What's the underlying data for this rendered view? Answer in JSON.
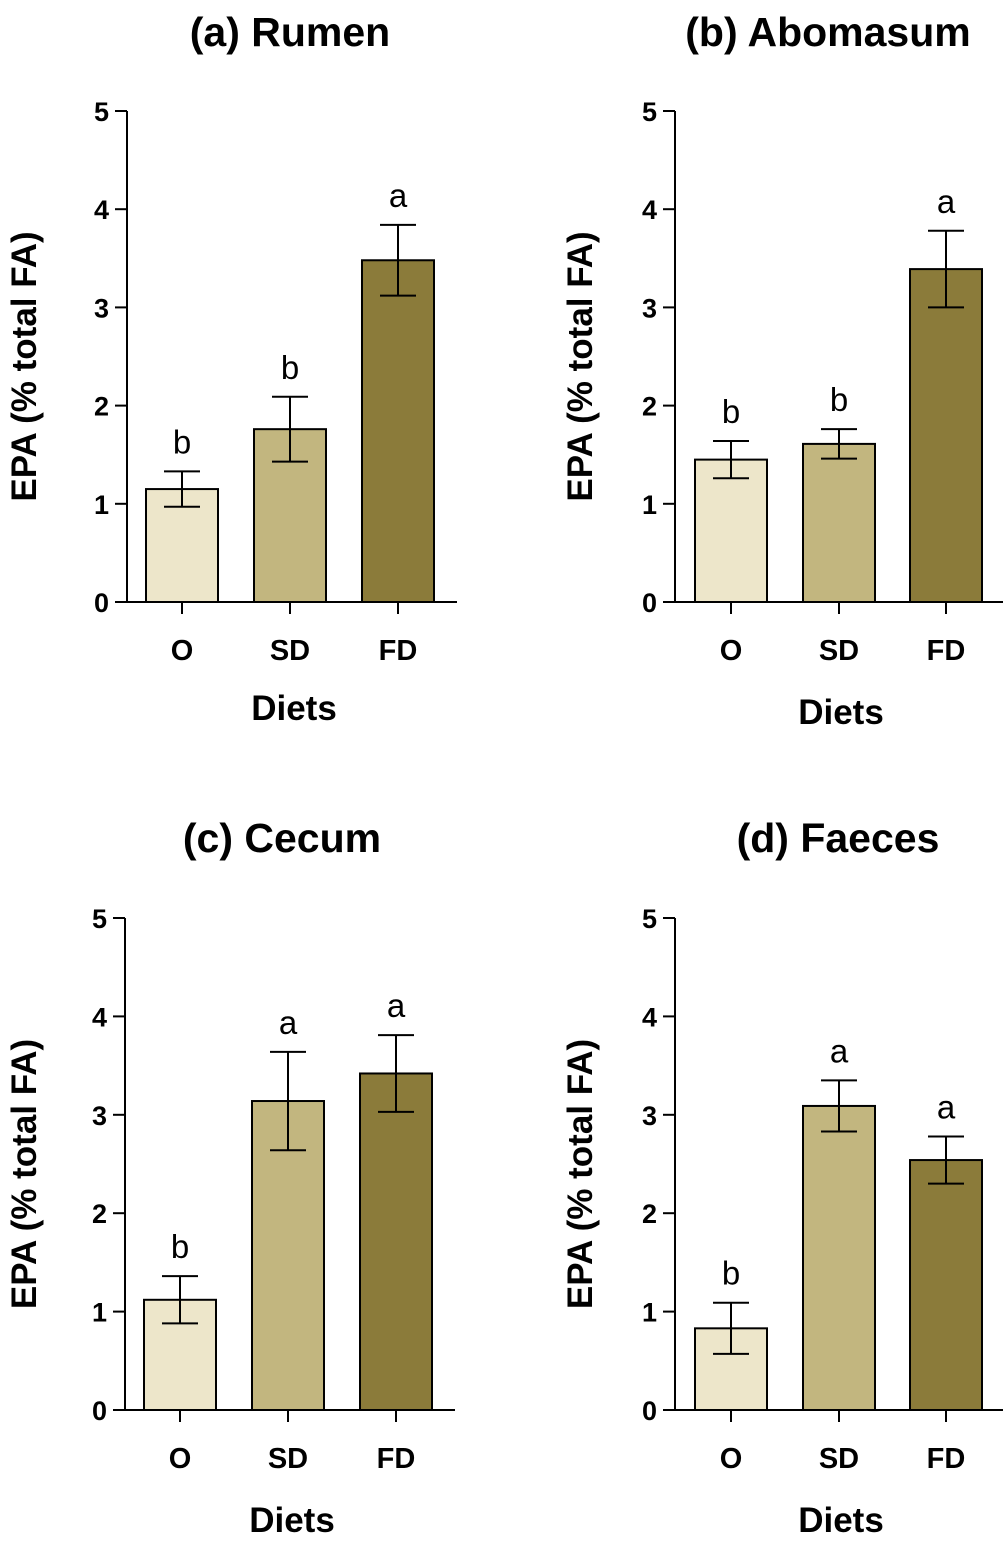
{
  "colors": {
    "O": "#ede6ca",
    "SD": "#c2b67f",
    "FD": "#8b7b3a",
    "stroke": "#000000"
  },
  "chart_data": [
    {
      "type": "bar",
      "title": "(a) Rumen",
      "xlabel": "Diets",
      "ylabel": "EPA (% total FA)",
      "ylim": [
        0,
        5
      ],
      "yticks": [
        "0",
        "1",
        "2",
        "3",
        "4",
        "5"
      ],
      "categories": [
        "O",
        "SD",
        "FD"
      ],
      "values": [
        1.15,
        1.76,
        3.48
      ],
      "errors": [
        0.18,
        0.33,
        0.36
      ],
      "significance": [
        "b",
        "b",
        "a"
      ]
    },
    {
      "type": "bar",
      "title": "(b) Abomasum",
      "xlabel": "Diets",
      "ylabel": "EPA (% total FA)",
      "ylim": [
        0,
        5
      ],
      "yticks": [
        "0",
        "1",
        "2",
        "3",
        "4",
        "5"
      ],
      "categories": [
        "O",
        "SD",
        "FD"
      ],
      "values": [
        1.45,
        1.61,
        3.39
      ],
      "errors": [
        0.19,
        0.15,
        0.39
      ],
      "significance": [
        "b",
        "b",
        "a"
      ]
    },
    {
      "type": "bar",
      "title": "(c) Cecum",
      "xlabel": "Diets",
      "ylabel": "EPA (% total FA)",
      "ylim": [
        0,
        5
      ],
      "yticks": [
        "0",
        "1",
        "2",
        "3",
        "4",
        "5"
      ],
      "categories": [
        "O",
        "SD",
        "FD"
      ],
      "values": [
        1.12,
        3.14,
        3.42
      ],
      "errors": [
        0.24,
        0.5,
        0.39
      ],
      "significance": [
        "b",
        "a",
        "a"
      ]
    },
    {
      "type": "bar",
      "title": "(d) Faeces",
      "xlabel": "Diets",
      "ylabel": "EPA (% total FA)",
      "ylim": [
        0,
        5
      ],
      "yticks": [
        "0",
        "1",
        "2",
        "3",
        "4",
        "5"
      ],
      "categories": [
        "O",
        "SD",
        "FD"
      ],
      "values": [
        0.83,
        3.09,
        2.54
      ],
      "errors": [
        0.26,
        0.26,
        0.24
      ],
      "significance": [
        "b",
        "a",
        "a"
      ]
    }
  ]
}
